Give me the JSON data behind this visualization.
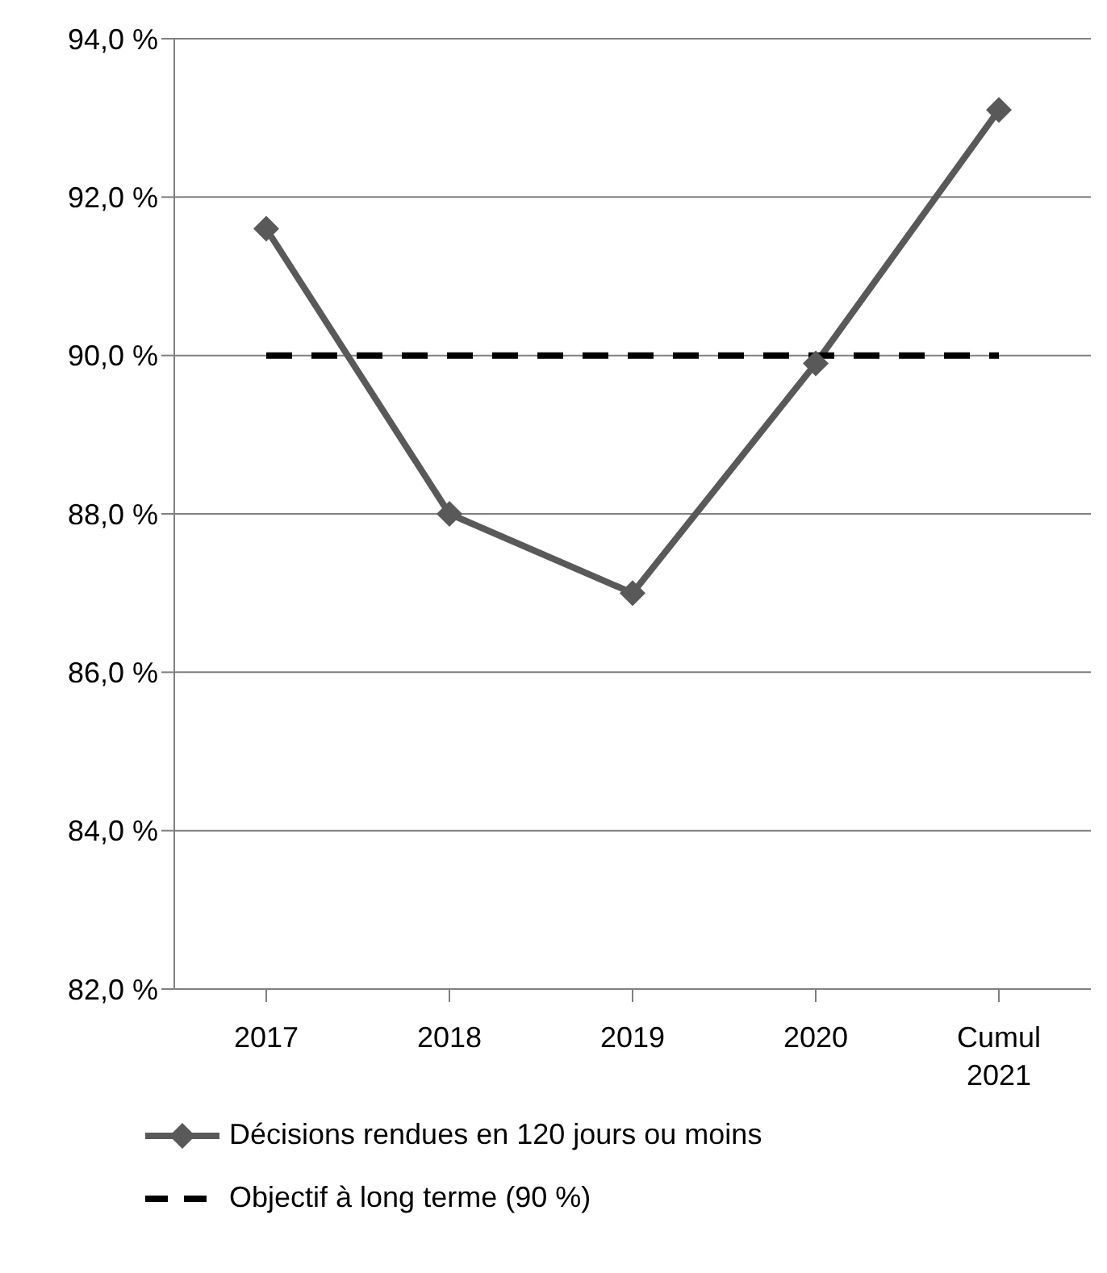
{
  "chart_data": {
    "type": "line",
    "categories": [
      "2017",
      "2018",
      "2019",
      "2020",
      "Cumul 2021"
    ],
    "series": [
      {
        "name": "Décisions rendues en 120 jours ou moins",
        "color": "#595959",
        "values": [
          91.6,
          88.0,
          87.0,
          89.9,
          93.1
        ],
        "marker": "diamond",
        "line_style": "solid"
      },
      {
        "name": "Objectif à long terme (90 %)",
        "color": "#000000",
        "values": [
          90,
          90,
          90,
          90,
          90
        ],
        "marker": "none",
        "line_style": "dashed"
      }
    ],
    "ylim": [
      82,
      94
    ],
    "yticks": [
      {
        "value": 82,
        "label": "82,0 %"
      },
      {
        "value": 84,
        "label": "84,0 %"
      },
      {
        "value": 86,
        "label": "86,0 %"
      },
      {
        "value": 88,
        "label": "88,0 %"
      },
      {
        "value": 90,
        "label": "90,0 %"
      },
      {
        "value": 92,
        "label": "92,0 %"
      },
      {
        "value": 94,
        "label": "94,0 %"
      }
    ],
    "grid": "y",
    "legend": "bottom"
  }
}
